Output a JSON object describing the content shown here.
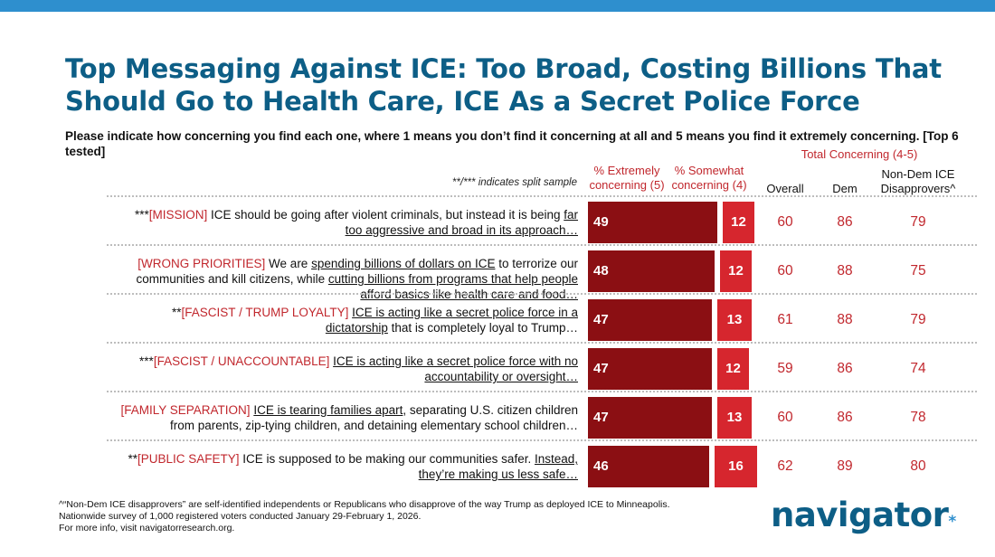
{
  "colors": {
    "title": "#0d5e86",
    "accent_bar": "#2e8fce",
    "extremely": "#8b0f13",
    "somewhat": "#d6262e",
    "red_text": "#c1272d"
  },
  "title": "Top Messaging Against ICE: Too Broad, Costing Billions That Should Go to Health Care, ICE As a Secret Police Force",
  "subtitle": "Please indicate how concerning you find each one, where 1 means you don’t find it concerning at all and 5 means you find it extremely concerning. [Top 6 tested]",
  "split_note": "**/*** indicates split sample",
  "chart_data": {
    "type": "bar",
    "orientation": "horizontal-stacked",
    "title": "Top Messaging Against ICE: Too Broad, Costing Billions That Should Go to Health Care, ICE As a Secret Police Force",
    "series_labels": {
      "extremely": "% Extremely concerning (5)",
      "somewhat": "% Somewhat concerning (4)"
    },
    "group_header": "Total Concerning (4-5)",
    "column_headers": {
      "overall": "Overall",
      "dem": "Dem",
      "ndem": "Non-Dem ICE Disapprovers^"
    },
    "categories": [
      {
        "prefix": "***",
        "tag": "[MISSION]",
        "parts": [
          {
            "t": " ICE should be going after violent criminals, but instead it is being ",
            "u": false
          },
          {
            "t": "far too aggressive and broad in its approach…",
            "u": true
          }
        ]
      },
      {
        "prefix": "",
        "tag": "[WRONG PRIORITIES]",
        "parts": [
          {
            "t": " We are ",
            "u": false
          },
          {
            "t": "spending billions of dollars on ICE",
            "u": true
          },
          {
            "t": " to terrorize our communities and kill citizens, while ",
            "u": false
          },
          {
            "t": "cutting billions from programs that help people afford basics like health care and food…",
            "u": true
          }
        ]
      },
      {
        "prefix": "**",
        "tag": "[FASCIST / TRUMP LOYALTY]",
        "parts": [
          {
            "t": " ",
            "u": false
          },
          {
            "t": "ICE is acting like a secret police force in a dictatorship",
            "u": true
          },
          {
            "t": " that is completely loyal to Trump…",
            "u": false
          }
        ]
      },
      {
        "prefix": "***",
        "tag": "[FASCIST / UNACCOUNTABLE]",
        "parts": [
          {
            "t": " ",
            "u": false
          },
          {
            "t": "ICE is acting like a secret police force with no accountability or oversight…",
            "u": true
          }
        ]
      },
      {
        "prefix": "",
        "tag": "[FAMILY SEPARATION]",
        "parts": [
          {
            "t": " ",
            "u": false
          },
          {
            "t": "ICE is tearing families apart",
            "u": true
          },
          {
            "t": ", separating U.S. citizen children from parents, zip-tying children, and detaining elementary school children…",
            "u": false
          }
        ]
      },
      {
        "prefix": "**",
        "tag": "[PUBLIC SAFETY]",
        "parts": [
          {
            "t": " ICE is supposed to be making our communities safer. ",
            "u": false
          },
          {
            "t": "Instead, they’re making us less safe…",
            "u": true
          }
        ]
      }
    ],
    "extremely": [
      49,
      48,
      47,
      47,
      47,
      46
    ],
    "somewhat": [
      12,
      12,
      13,
      12,
      13,
      16
    ],
    "overall": [
      60,
      60,
      61,
      59,
      60,
      62
    ],
    "dem": [
      86,
      88,
      88,
      86,
      86,
      89
    ],
    "ndem": [
      79,
      75,
      79,
      74,
      78,
      80
    ],
    "xlim": [
      0,
      62
    ]
  },
  "footnote": [
    "^“Non-Dem ICE disapprovers” are self-identified independents or Republicans who disapprove of the way Trump as deployed ICE to Minneapolis.",
    "Nationwide survey of 1,000 registered voters conducted January 29-February 1, 2026.",
    "For more info, visit navigatorresearch.org."
  ],
  "logo": {
    "text": "navigator",
    "mark": "*"
  }
}
